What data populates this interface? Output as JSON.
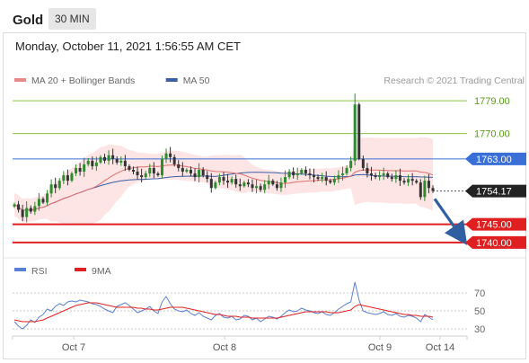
{
  "header": {
    "symbol": "Gold",
    "interval": "30 MIN",
    "datetime": "Monday, October 11, 2021 1:56:55 AM CET"
  },
  "colors": {
    "up": "#2e8b2e",
    "down": "#333333",
    "ma20": "#e06f6f",
    "bollinger_fill": "#fde0e0",
    "ma50": "#3a5ea8",
    "resistance_green": "#8cc63f",
    "pivot_blue": "#3a6fd8",
    "support_red": "#e02020",
    "arrow": "#2f5fa0",
    "rsi": "#5b7fd0",
    "rsi_ma": "#e02020"
  },
  "chart_data": [
    {
      "type": "line",
      "title": "Gold",
      "subtitle": "30 MIN",
      "legend": [
        {
          "name": "MA 20 + Bollinger Bands",
          "color": "#e88a8a"
        },
        {
          "name": "MA 50",
          "color": "#3a5ea8"
        }
      ],
      "source": "Research © 2021 Trading Central",
      "x_ticks": [
        "Oct 7",
        "Oct 8",
        "Oct 9",
        "Oct 14"
      ],
      "ylim": [
        1737,
        1783
      ],
      "levels": [
        {
          "value": 1779.0,
          "label": "1779.00",
          "kind": "resistance",
          "style": "line"
        },
        {
          "value": 1770.0,
          "label": "1770.00",
          "kind": "resistance",
          "style": "line"
        },
        {
          "value": 1763.0,
          "label": "1763.00",
          "kind": "pivot",
          "style": "box"
        },
        {
          "value": 1754.17,
          "label": "1754.17",
          "kind": "last_price",
          "style": "box"
        },
        {
          "value": 1745.0,
          "label": "1745.00",
          "kind": "support",
          "style": "box"
        },
        {
          "value": 1740.0,
          "label": "1740.00",
          "kind": "support",
          "style": "box"
        }
      ],
      "projection_arrow": {
        "from": 1752.0,
        "to": 1742.5
      },
      "closes": [
        1750.5,
        1749.0,
        1747.0,
        1749.5,
        1748.5,
        1750.0,
        1752.0,
        1751.0,
        1753.5,
        1756.0,
        1755.0,
        1757.0,
        1758.5,
        1757.0,
        1759.0,
        1760.5,
        1759.5,
        1761.5,
        1762.5,
        1761.0,
        1762.0,
        1763.5,
        1762.5,
        1764.0,
        1763.0,
        1762.0,
        1762.5,
        1761.0,
        1760.0,
        1759.5,
        1758.5,
        1758.0,
        1759.0,
        1760.5,
        1759.0,
        1758.5,
        1763.0,
        1764.5,
        1763.5,
        1761.5,
        1760.5,
        1759.5,
        1760.0,
        1759.0,
        1758.0,
        1760.0,
        1758.5,
        1757.5,
        1755.0,
        1756.5,
        1758.0,
        1757.0,
        1756.5,
        1757.5,
        1756.0,
        1755.5,
        1756.5,
        1756.0,
        1755.0,
        1755.5,
        1754.5,
        1756.0,
        1757.0,
        1756.0,
        1755.0,
        1756.5,
        1758.0,
        1759.5,
        1758.5,
        1759.0,
        1760.0,
        1759.0,
        1758.5,
        1758.0,
        1757.5,
        1758.0,
        1757.0,
        1756.5,
        1757.5,
        1758.5,
        1759.0,
        1760.5,
        1762.5,
        1778.0,
        1763.0,
        1760.5,
        1759.0,
        1758.5,
        1758.0,
        1758.5,
        1759.0,
        1758.0,
        1757.5,
        1758.5,
        1757.0,
        1756.5,
        1757.5,
        1757.0,
        1756.5,
        1752.5,
        1757.0,
        1755.0,
        1754.2
      ]
    },
    {
      "type": "line",
      "legend": [
        {
          "name": "RSI",
          "color": "#5b7fd0"
        },
        {
          "name": "9MA",
          "color": "#e02020"
        }
      ],
      "ylim": [
        25,
        80
      ],
      "y_ticks": [
        30,
        50,
        70
      ],
      "reference_lines": [
        30,
        50,
        70
      ],
      "rsi": [
        38,
        33,
        30,
        34,
        40,
        37,
        43,
        46,
        52,
        50,
        55,
        58,
        56,
        60,
        61,
        60,
        62,
        61,
        60,
        58,
        57,
        55,
        52,
        50,
        48,
        55,
        57,
        59,
        56,
        52,
        48,
        50,
        52,
        55,
        50,
        47,
        60,
        66,
        58,
        52,
        50,
        49,
        51,
        47,
        45,
        48,
        44,
        42,
        40,
        45,
        47,
        43,
        42,
        44,
        40,
        41,
        45,
        44,
        40,
        42,
        38,
        41,
        44,
        43,
        41,
        44,
        48,
        51,
        49,
        50,
        53,
        51,
        50,
        48,
        47,
        49,
        46,
        45,
        48,
        52,
        55,
        58,
        60,
        82,
        62,
        50,
        48,
        47,
        46,
        47,
        49,
        46,
        45,
        47,
        44,
        43,
        45,
        44,
        42,
        38,
        46,
        43,
        40
      ],
      "rsi_ma": [
        40,
        39,
        38,
        38,
        38,
        38,
        39,
        40,
        42,
        44,
        46,
        48,
        50,
        52,
        54,
        56,
        57,
        58,
        59,
        59,
        59,
        58,
        57,
        56,
        55,
        54,
        54,
        54,
        54,
        54,
        53,
        53,
        52,
        52,
        51,
        51,
        52,
        53,
        54,
        54,
        54,
        54,
        53,
        52,
        51,
        50,
        49,
        48,
        47,
        46,
        46,
        45,
        44,
        44,
        44,
        43,
        43,
        43,
        42,
        42,
        42,
        42,
        42,
        42,
        42,
        43,
        44,
        45,
        46,
        47,
        48,
        49,
        49,
        49,
        49,
        49,
        49,
        48,
        48,
        48,
        49,
        50,
        51,
        55,
        57,
        56,
        55,
        54,
        53,
        52,
        51,
        50,
        49,
        48,
        47,
        46,
        46,
        45,
        45,
        44,
        44,
        44,
        43
      ]
    }
  ]
}
